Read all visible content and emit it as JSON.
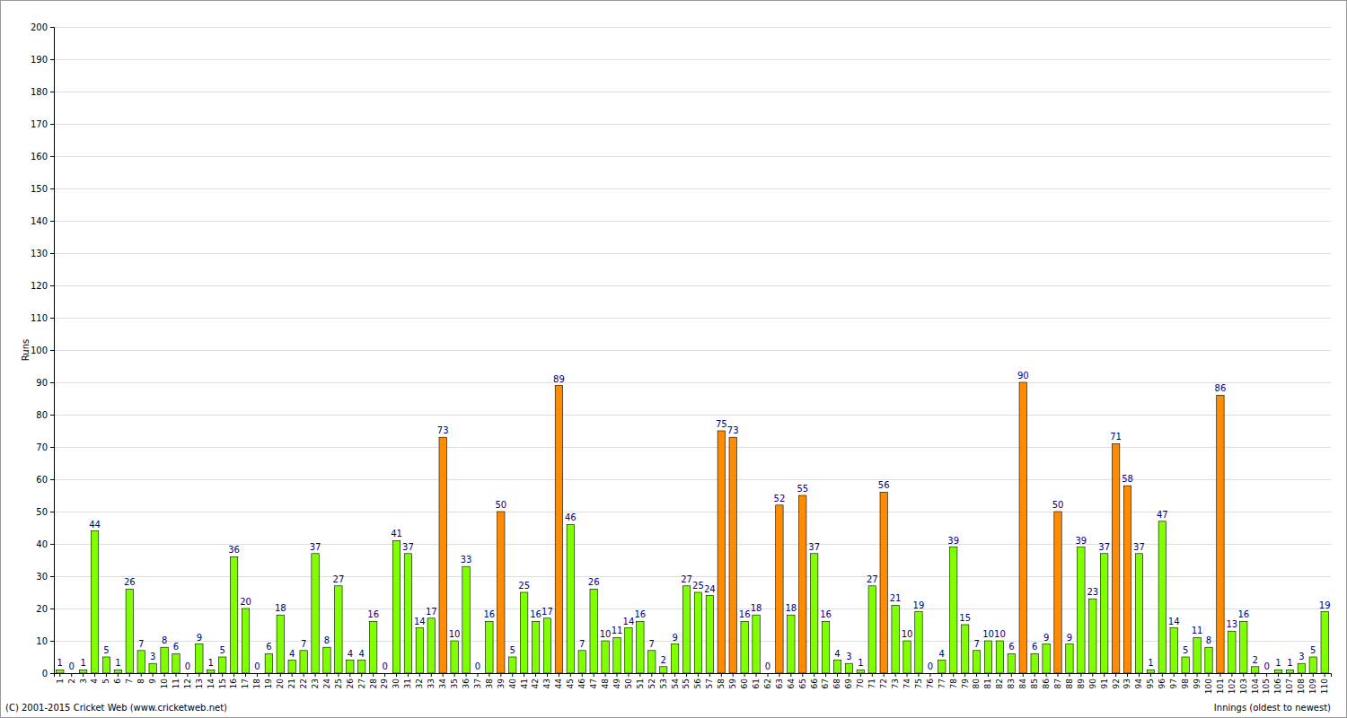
{
  "chart_data": {
    "type": "bar",
    "x_label": "Innings (oldest to newest)",
    "y_label": "Runs",
    "annotations": [
      "(C) 2001-2015 Cricket Web (www.cricketweb.net)"
    ],
    "categories": [
      "1",
      "2",
      "3",
      "4",
      "5",
      "6",
      "7",
      "8",
      "9",
      "10",
      "11",
      "12",
      "13",
      "14",
      "15",
      "16",
      "17",
      "18",
      "19",
      "20",
      "21",
      "22",
      "23",
      "24",
      "25",
      "26",
      "27",
      "28",
      "29",
      "30",
      "31",
      "32",
      "33",
      "34",
      "35",
      "36",
      "37",
      "38",
      "39",
      "40",
      "41",
      "42",
      "43",
      "44",
      "45",
      "46",
      "47",
      "48",
      "49",
      "50",
      "51",
      "52",
      "53",
      "54",
      "55",
      "56",
      "57",
      "58",
      "59",
      "60",
      "61",
      "62",
      "63",
      "64",
      "65",
      "66",
      "67",
      "68",
      "69",
      "70",
      "71",
      "72",
      "73",
      "74",
      "75",
      "76",
      "77",
      "78",
      "79",
      "80",
      "81",
      "82",
      "83",
      "84",
      "85",
      "86",
      "87",
      "88",
      "89",
      "90",
      "91",
      "92",
      "93",
      "94",
      "95",
      "96",
      "97",
      "98",
      "99",
      "100",
      "101",
      "102",
      "103",
      "104",
      "105",
      "106",
      "107",
      "108",
      "109",
      "110"
    ],
    "values": [
      1,
      0,
      1,
      44,
      5,
      1,
      26,
      7,
      3,
      8,
      6,
      0,
      9,
      1,
      5,
      36,
      20,
      0,
      6,
      18,
      4,
      7,
      37,
      8,
      27,
      4,
      4,
      16,
      0,
      41,
      37,
      14,
      17,
      73,
      10,
      33,
      0,
      16,
      50,
      5,
      25,
      16,
      17,
      89,
      46,
      7,
      26,
      10,
      11,
      14,
      16,
      7,
      2,
      9,
      27,
      25,
      24,
      75,
      73,
      16,
      18,
      0,
      52,
      18,
      55,
      37,
      16,
      4,
      3,
      1,
      27,
      56,
      21,
      10,
      19,
      0,
      4,
      39,
      15,
      7,
      10,
      10,
      6,
      90,
      6,
      9,
      50,
      9,
      39,
      23,
      37,
      71,
      58,
      37,
      1,
      47,
      14,
      5,
      11,
      8,
      86,
      13,
      16,
      2,
      0,
      1,
      1,
      3,
      5,
      19
    ],
    "colors": [
      "#80ff00",
      "#80ff00",
      "#80ff00",
      "#80ff00",
      "#80ff00",
      "#80ff00",
      "#80ff00",
      "#80ff00",
      "#80ff00",
      "#80ff00",
      "#80ff00",
      "#80ff00",
      "#80ff00",
      "#80ff00",
      "#80ff00",
      "#80ff00",
      "#80ff00",
      "#80ff00",
      "#80ff00",
      "#80ff00",
      "#80ff00",
      "#80ff00",
      "#80ff00",
      "#80ff00",
      "#80ff00",
      "#80ff00",
      "#80ff00",
      "#80ff00",
      "#80ff00",
      "#80ff00",
      "#80ff00",
      "#80ff00",
      "#80ff00",
      "#ff8c00",
      "#80ff00",
      "#80ff00",
      "#80ff00",
      "#80ff00",
      "#ff8c00",
      "#80ff00",
      "#80ff00",
      "#80ff00",
      "#80ff00",
      "#ff8c00",
      "#80ff00",
      "#80ff00",
      "#80ff00",
      "#80ff00",
      "#80ff00",
      "#80ff00",
      "#80ff00",
      "#80ff00",
      "#80ff00",
      "#80ff00",
      "#80ff00",
      "#80ff00",
      "#80ff00",
      "#ff8c00",
      "#ff8c00",
      "#80ff00",
      "#80ff00",
      "#80ff00",
      "#ff8c00",
      "#80ff00",
      "#ff8c00",
      "#80ff00",
      "#80ff00",
      "#80ff00",
      "#80ff00",
      "#80ff00",
      "#80ff00",
      "#ff8c00",
      "#80ff00",
      "#80ff00",
      "#80ff00",
      "#80ff00",
      "#80ff00",
      "#80ff00",
      "#80ff00",
      "#80ff00",
      "#80ff00",
      "#80ff00",
      "#80ff00",
      "#ff8c00",
      "#80ff00",
      "#80ff00",
      "#ff8c00",
      "#80ff00",
      "#80ff00",
      "#80ff00",
      "#80ff00",
      "#ff8c00",
      "#ff8c00",
      "#80ff00",
      "#80ff00",
      "#80ff00",
      "#80ff00",
      "#80ff00",
      "#80ff00",
      "#80ff00",
      "#ff8c00",
      "#80ff00",
      "#80ff00",
      "#80ff00",
      "#80ff00",
      "#80ff00",
      "#80ff00",
      "#80ff00",
      "#80ff00",
      "#80ff00"
    ],
    "ylim": [
      0,
      200
    ],
    "yticks": [
      0,
      10,
      20,
      30,
      40,
      50,
      60,
      70,
      80,
      90,
      100,
      110,
      120,
      130,
      140,
      150,
      160,
      170,
      180,
      190,
      200
    ],
    "grid": true,
    "data_labels": true
  }
}
